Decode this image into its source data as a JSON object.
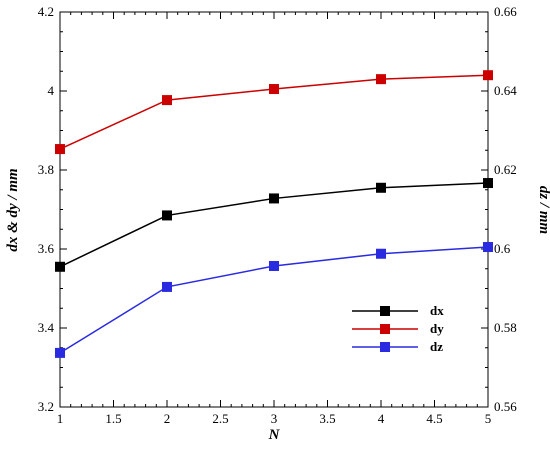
{
  "chart_data": {
    "type": "line",
    "title": "",
    "xlabel": "N",
    "ylabel": "dx & dy / mm",
    "y2label": "dz / mm",
    "xlim": [
      1,
      5
    ],
    "ylim": [
      3.2,
      4.2
    ],
    "y2lim": [
      0.56,
      0.66
    ],
    "x_ticks": [
      "1",
      "1.5",
      "2",
      "2.5",
      "3",
      "3.5",
      "4",
      "4.5",
      "5"
    ],
    "y_ticks": [
      "3.2",
      "3.4",
      "3.6",
      "3.8",
      "4",
      "4.2"
    ],
    "y2_ticks": [
      "0.56",
      "0.58",
      "0.6",
      "0.62",
      "0.64",
      "0.66"
    ],
    "grid": false,
    "legend_position": "bottom-right",
    "x": [
      1,
      2,
      3,
      4,
      5
    ],
    "series": [
      {
        "name": "dx",
        "axis": "left",
        "color": "#000000",
        "values": [
          3.555,
          3.685,
          3.728,
          3.755,
          3.767
        ]
      },
      {
        "name": "dy",
        "axis": "left",
        "color": "#cc0000",
        "values": [
          3.853,
          3.977,
          4.005,
          4.03,
          4.04
        ]
      },
      {
        "name": "dz",
        "axis": "right",
        "color": "#2a2ae0",
        "values": [
          0.5737,
          0.5904,
          0.5957,
          0.5988,
          0.6005
        ]
      }
    ]
  }
}
